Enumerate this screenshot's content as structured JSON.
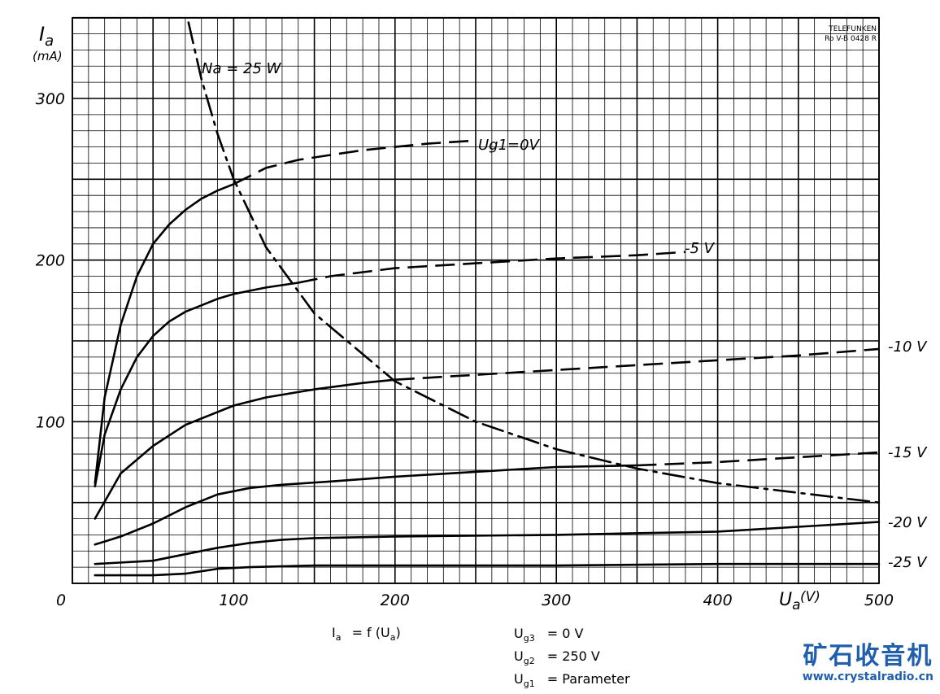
{
  "chart_data": {
    "type": "line",
    "title": "",
    "xlabel": "U",
    "xlabel_sub": "a",
    "xlabel_unit": "(V)",
    "ylabel": "I",
    "ylabel_sub": "a",
    "ylabel_unit": "(mA)",
    "xlim": [
      0,
      500
    ],
    "ylim": [
      0,
      350
    ],
    "x_ticks": [
      "0",
      "100",
      "200",
      "300",
      "400",
      "500"
    ],
    "y_ticks": [
      "100",
      "200",
      "300"
    ],
    "grid": true,
    "stamp": [
      "TELEFUNKEN",
      "Ro V-B 0428 R"
    ],
    "series": [
      {
        "name": "U_g1 = 0 V",
        "label": "Ug1=0V",
        "style": "solid",
        "x": [
          14,
          20,
          30,
          40,
          50,
          60,
          70,
          80,
          90,
          100
        ],
        "y": [
          62,
          115,
          160,
          190,
          210,
          222,
          231,
          238,
          243,
          247
        ],
        "dashed": {
          "x": [
            100,
            120,
            140,
            160,
            180,
            200,
            220,
            250
          ],
          "y": [
            247,
            257,
            262,
            265,
            268,
            270,
            272,
            274
          ]
        }
      },
      {
        "name": "-5 V",
        "label": "-5 V",
        "style": "solid",
        "x": [
          14,
          20,
          30,
          40,
          50,
          60,
          70,
          80,
          90,
          100,
          120,
          140
        ],
        "y": [
          60,
          92,
          120,
          140,
          153,
          162,
          168,
          172,
          176,
          179,
          183,
          186
        ],
        "dashed": {
          "x": [
            140,
            160,
            200,
            250,
            300,
            350,
            380
          ],
          "y": [
            186,
            190,
            195,
            198,
            201,
            203,
            205
          ]
        }
      },
      {
        "name": "-10 V",
        "label": "-10 V",
        "style": "solid",
        "x": [
          14,
          30,
          50,
          70,
          100,
          120,
          150,
          180,
          200
        ],
        "y": [
          40,
          68,
          85,
          98,
          110,
          115,
          120,
          124,
          126
        ],
        "dashed": {
          "x": [
            200,
            250,
            300,
            350,
            400,
            450,
            500
          ],
          "y": [
            126,
            129,
            132,
            135,
            138,
            141,
            145
          ]
        }
      },
      {
        "name": "-15 V",
        "label": "-15 V",
        "style": "solid",
        "x": [
          14,
          30,
          50,
          70,
          90,
          110,
          130,
          160,
          200,
          250,
          300,
          350
        ],
        "y": [
          24,
          29,
          37,
          47,
          55,
          59,
          61,
          63,
          66,
          69,
          72,
          73
        ],
        "dashed": {
          "x": [
            350,
            400,
            450,
            500
          ],
          "y": [
            73,
            75,
            78,
            81
          ]
        }
      },
      {
        "name": "-20 V",
        "label": "-20 V",
        "style": "solid",
        "x": [
          14,
          50,
          70,
          90,
          110,
          130,
          150,
          200,
          300,
          400,
          450,
          500
        ],
        "y": [
          12,
          14,
          18,
          22,
          25,
          27,
          28,
          29,
          30,
          32,
          35,
          38
        ],
        "dashed": {
          "x": [],
          "y": []
        }
      },
      {
        "name": "-25 V",
        "label": "-25 V",
        "style": "solid",
        "x": [
          14,
          50,
          70,
          90,
          110,
          150,
          200,
          300,
          400,
          500
        ],
        "y": [
          5,
          5,
          6,
          9,
          10,
          11,
          11,
          11,
          12,
          12
        ],
        "dashed": {
          "x": [],
          "y": []
        }
      },
      {
        "name": "Na = 25 W",
        "label": "Na = 25 W",
        "style": "dash-dot",
        "x": [
          72,
          80,
          90,
          100,
          120,
          150,
          200,
          250,
          300,
          350,
          400,
          450,
          500
        ],
        "y": [
          347,
          312,
          278,
          250,
          208,
          167,
          125,
          100,
          83,
          71,
          62,
          56,
          50
        ],
        "dashed": {
          "x": [],
          "y": []
        }
      }
    ]
  },
  "notes": {
    "formula_lhs": "I",
    "formula_lhs_sub": "a",
    "formula_rhs": "= f (U",
    "formula_rhs_sub": "a",
    "formula_end": ")",
    "params": [
      {
        "sym": "U",
        "sub": "g3",
        "val": "= 0 V"
      },
      {
        "sym": "U",
        "sub": "g2",
        "val": "= 250 V"
      },
      {
        "sym": "U",
        "sub": "g1",
        "val": "= Parameter"
      }
    ]
  },
  "brand": {
    "name": "矿石收音机",
    "url": "www.crystalradio.cn",
    "color": "#1f5fae"
  }
}
